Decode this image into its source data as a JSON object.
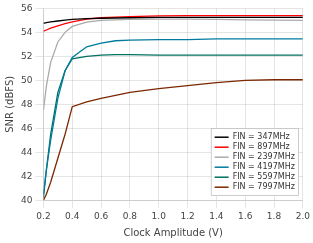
{
  "chart_data": {
    "type": "line",
    "xlabel": "Clock Amplitude (V)",
    "ylabel": "SNR (dBFS)",
    "x": [
      0.2,
      0.22,
      0.25,
      0.3,
      0.35,
      0.4,
      0.5,
      0.6,
      0.7,
      0.8,
      1.0,
      1.2,
      1.4,
      1.6,
      1.8,
      2.0
    ],
    "series": [
      {
        "name": "FIN = 347MHz",
        "color": "#000000",
        "values": [
          54.75,
          54.82,
          54.88,
          54.95,
          55.02,
          55.08,
          55.15,
          55.18,
          55.2,
          55.22,
          55.25,
          55.25,
          55.25,
          55.25,
          55.25,
          55.25
        ]
      },
      {
        "name": "FIN = 897MHz",
        "color": "#ff0000",
        "values": [
          54.1,
          54.2,
          54.35,
          54.55,
          54.72,
          54.88,
          55.1,
          55.22,
          55.28,
          55.32,
          55.38,
          55.4,
          55.4,
          55.4,
          55.4,
          55.4
        ]
      },
      {
        "name": "FIN = 2397MHz",
        "color": "#aaaaaa",
        "values": [
          47.5,
          49.5,
          51.5,
          53.2,
          54.0,
          54.5,
          54.85,
          55.0,
          55.05,
          55.08,
          55.1,
          55.1,
          55.08,
          55.05,
          55.02,
          55.0
        ]
      },
      {
        "name": "FIN = 4197MHz",
        "color": "#007b9e",
        "values": [
          40.5,
          42.5,
          45.0,
          48.5,
          50.8,
          51.9,
          52.8,
          53.1,
          53.3,
          53.35,
          53.4,
          53.4,
          53.45,
          53.45,
          53.45,
          53.45
        ]
      },
      {
        "name": "FIN = 5597MHz",
        "color": "#007060",
        "values": [
          40.2,
          42.5,
          45.5,
          49.0,
          50.8,
          51.8,
          52.0,
          52.1,
          52.15,
          52.15,
          52.1,
          52.1,
          52.1,
          52.1,
          52.1,
          52.1
        ]
      },
      {
        "name": "FIN = 7997MHz",
        "color": "#7b2800",
        "values": [
          40.0,
          40.5,
          41.5,
          43.5,
          45.5,
          47.8,
          48.2,
          48.5,
          48.75,
          49.0,
          49.3,
          49.55,
          49.8,
          50.0,
          50.05,
          50.05
        ]
      }
    ],
    "xlim": [
      0.2,
      2.0
    ],
    "ylim": [
      40,
      56
    ],
    "xticks": [
      0.2,
      0.4,
      0.6,
      0.8,
      {
        "value": 1,
        "label": "1.0"
      },
      1.2,
      1.4,
      1.6,
      1.8,
      {
        "value": 2,
        "label": "2.0"
      }
    ],
    "yticks": [
      40,
      42,
      44,
      46,
      48,
      50,
      52,
      54,
      56
    ],
    "grid": true,
    "legend": "lower right"
  }
}
